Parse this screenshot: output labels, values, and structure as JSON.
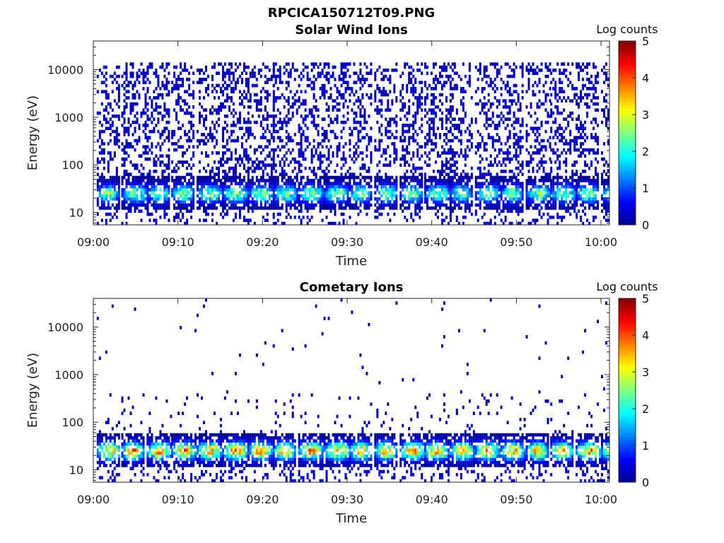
{
  "figure_title": "RPCICA150712T09.PNG",
  "colormap": {
    "name": "jet",
    "stops": [
      "#00008f",
      "#0000ff",
      "#0080ff",
      "#00ffff",
      "#80ff80",
      "#ffff00",
      "#ff8000",
      "#ff0000",
      "#800000"
    ]
  },
  "chart_data": [
    {
      "type": "heatmap",
      "title": "Solar Wind Ions",
      "xlabel": "Time",
      "ylabel": "Energy (eV)",
      "xticks": [
        "09:00",
        "09:10",
        "09:20",
        "09:30",
        "09:40",
        "09:50",
        "10:00"
      ],
      "xlim_minutes": [
        0,
        61
      ],
      "yscale": "log",
      "yticks": [
        10,
        100,
        1000,
        10000
      ],
      "ytick_labels": [
        "10",
        "100",
        "1000",
        "10000"
      ],
      "ylim": [
        5.5,
        40000
      ],
      "colorbar": {
        "label": "Log counts",
        "range": [
          0,
          5
        ],
        "ticks": [
          "0",
          "1",
          "2",
          "3",
          "4",
          "5"
        ]
      },
      "pattern": {
        "scan_start_minutes": [
          0.4,
          3.3,
          6.3,
          9.2,
          12.2,
          15.2,
          18.2,
          21.2,
          24.2,
          27.2,
          30.2,
          33.2,
          36.2,
          39.1,
          42.1,
          45.1,
          48.1,
          51.1,
          54.0,
          57.0,
          60.0
        ],
        "peak_energy_eV": 25,
        "peak_log_counts": 2.8,
        "background_energy_range_eV": [
          60,
          15000
        ],
        "background_log_counts": 0.3
      }
    },
    {
      "type": "heatmap",
      "title": "Cometary Ions",
      "xlabel": "Time",
      "ylabel": "Energy (eV)",
      "xticks": [
        "09:00",
        "09:10",
        "09:20",
        "09:30",
        "09:40",
        "09:50",
        "10:00"
      ],
      "xlim_minutes": [
        0,
        61
      ],
      "yscale": "log",
      "yticks": [
        10,
        100,
        1000,
        10000
      ],
      "ytick_labels": [
        "10",
        "100",
        "1000",
        "10000"
      ],
      "ylim": [
        5.5,
        40000
      ],
      "colorbar": {
        "label": "Log counts",
        "range": [
          0,
          5
        ],
        "ticks": [
          "0",
          "1",
          "2",
          "3",
          "4",
          "5"
        ]
      },
      "pattern": {
        "scan_start_minutes": [
          0.4,
          3.3,
          6.3,
          9.2,
          12.2,
          15.2,
          18.2,
          21.2,
          24.2,
          27.2,
          30.2,
          33.2,
          36.2,
          39.1,
          42.1,
          45.1,
          48.1,
          51.1,
          54.0,
          57.0,
          60.0
        ],
        "peak_energy_eV": 25,
        "peak_log_counts": 4.0,
        "background_energy_range_eV": [
          60,
          400
        ],
        "background_log_counts": 0.2
      }
    }
  ]
}
